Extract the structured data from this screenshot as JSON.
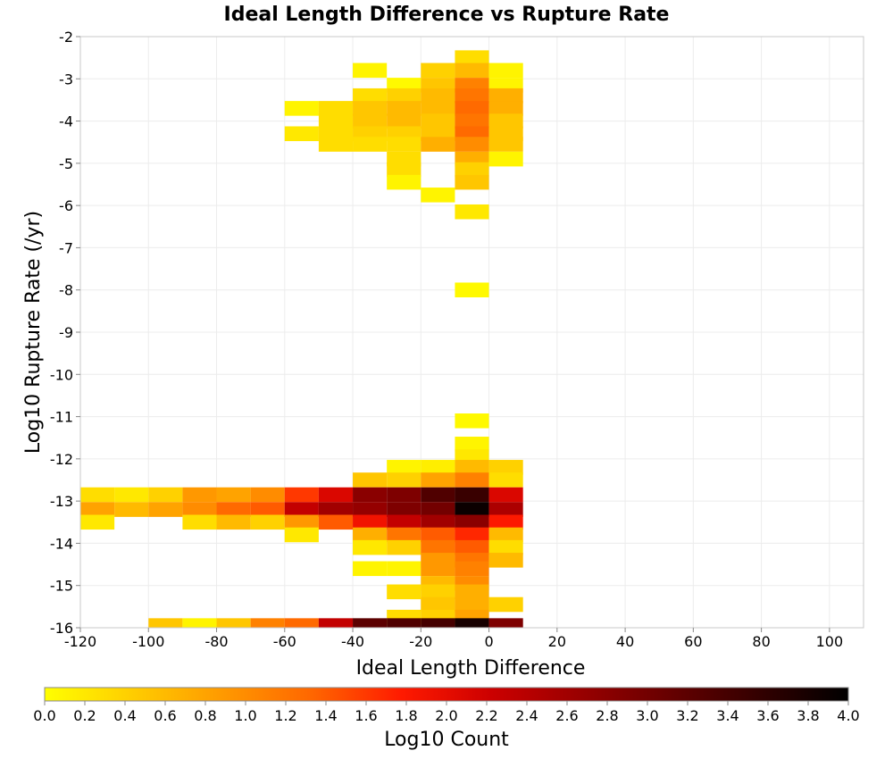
{
  "chart_data": {
    "type": "heatmap",
    "title": "Ideal Length Difference vs Rupture Rate",
    "xlabel": "Ideal Length Difference",
    "ylabel": "Log10 Rupture Rate (/yr)",
    "xlim": [
      -120,
      110
    ],
    "ylim": [
      -16,
      -2
    ],
    "x_ticks": [
      "-120",
      "-100",
      "-80",
      "-60",
      "-40",
      "-20",
      "0",
      "20",
      "40",
      "60",
      "80",
      "100"
    ],
    "y_ticks": [
      "-2",
      "-3",
      "-4",
      "-5",
      "-6",
      "-7",
      "-8",
      "-9",
      "-10",
      "-11",
      "-12",
      "-13",
      "-14",
      "-15",
      "-16"
    ],
    "bin_width_x": 10,
    "bin_height_y": 0.35,
    "colorbar": {
      "label": "Log10 Count",
      "range": [
        0,
        4
      ],
      "ticks": [
        "0.0",
        "0.2",
        "0.4",
        "0.6",
        "0.8",
        "1.0",
        "1.2",
        "1.4",
        "1.6",
        "1.8",
        "2.0",
        "2.2",
        "2.4",
        "2.6",
        "2.8",
        "3.0",
        "3.2",
        "3.4",
        "3.6",
        "3.8",
        "4.0"
      ],
      "colors": [
        "#ffff00",
        "#ffcc00",
        "#ff9900",
        "#ff6600",
        "#ff1a00",
        "#cc0000",
        "#990000",
        "#660000",
        "#330000",
        "#000000"
      ]
    },
    "grid": true,
    "cells": [
      {
        "x": -35,
        "y": -2.8,
        "value": 0.1
      },
      {
        "x": -15,
        "y": -2.8,
        "value": 0.4
      },
      {
        "x": -5,
        "y": -2.5,
        "value": 0.3
      },
      {
        "x": -5,
        "y": -2.8,
        "value": 0.6
      },
      {
        "x": 5,
        "y": -2.8,
        "value": 0.1
      },
      {
        "x": -25,
        "y": -3.15,
        "value": 0.05
      },
      {
        "x": -15,
        "y": -3.15,
        "value": 0.5
      },
      {
        "x": -5,
        "y": -3.15,
        "value": 1.1
      },
      {
        "x": 5,
        "y": -3.15,
        "value": 0.1
      },
      {
        "x": -35,
        "y": -3.4,
        "value": 0.3
      },
      {
        "x": -25,
        "y": -3.4,
        "value": 0.4
      },
      {
        "x": -15,
        "y": -3.4,
        "value": 0.6
      },
      {
        "x": -5,
        "y": -3.4,
        "value": 1.2
      },
      {
        "x": 5,
        "y": -3.4,
        "value": 0.7
      },
      {
        "x": -55,
        "y": -3.7,
        "value": 0.1
      },
      {
        "x": -45,
        "y": -3.7,
        "value": 0.3
      },
      {
        "x": -35,
        "y": -3.7,
        "value": 0.5
      },
      {
        "x": -25,
        "y": -3.7,
        "value": 0.6
      },
      {
        "x": -15,
        "y": -3.7,
        "value": 0.6
      },
      {
        "x": -5,
        "y": -3.7,
        "value": 1.3
      },
      {
        "x": 5,
        "y": -3.7,
        "value": 0.7
      },
      {
        "x": -45,
        "y": -4.0,
        "value": 0.3
      },
      {
        "x": -35,
        "y": -4.0,
        "value": 0.5
      },
      {
        "x": -25,
        "y": -4.0,
        "value": 0.6
      },
      {
        "x": -15,
        "y": -4.0,
        "value": 0.5
      },
      {
        "x": -5,
        "y": -4.0,
        "value": 1.2
      },
      {
        "x": 5,
        "y": -4.0,
        "value": 0.5
      },
      {
        "x": -55,
        "y": -4.3,
        "value": 0.2
      },
      {
        "x": -45,
        "y": -4.3,
        "value": 0.3
      },
      {
        "x": -35,
        "y": -4.3,
        "value": 0.4
      },
      {
        "x": -25,
        "y": -4.3,
        "value": 0.4
      },
      {
        "x": -15,
        "y": -4.3,
        "value": 0.5
      },
      {
        "x": -5,
        "y": -4.3,
        "value": 1.3
      },
      {
        "x": 5,
        "y": -4.3,
        "value": 0.5
      },
      {
        "x": -45,
        "y": -4.55,
        "value": 0.3
      },
      {
        "x": -35,
        "y": -4.55,
        "value": 0.3
      },
      {
        "x": -25,
        "y": -4.55,
        "value": 0.3
      },
      {
        "x": -15,
        "y": -4.55,
        "value": 0.7
      },
      {
        "x": -5,
        "y": -4.55,
        "value": 1.0
      },
      {
        "x": 5,
        "y": -4.55,
        "value": 0.5
      },
      {
        "x": -25,
        "y": -4.9,
        "value": 0.3
      },
      {
        "x": -5,
        "y": -4.9,
        "value": 0.7
      },
      {
        "x": 5,
        "y": -4.9,
        "value": 0.1
      },
      {
        "x": -25,
        "y": -5.15,
        "value": 0.3
      },
      {
        "x": -5,
        "y": -5.15,
        "value": 0.4
      },
      {
        "x": -25,
        "y": -5.45,
        "value": 0.1
      },
      {
        "x": -5,
        "y": -5.45,
        "value": 0.5
      },
      {
        "x": -15,
        "y": -5.75,
        "value": 0.1
      },
      {
        "x": -5,
        "y": -6.15,
        "value": 0.2
      },
      {
        "x": -5,
        "y": -8.0,
        "value": 0.05
      },
      {
        "x": -5,
        "y": -11.1,
        "value": 0.05
      },
      {
        "x": -5,
        "y": -11.65,
        "value": 0.1
      },
      {
        "x": -5,
        "y": -11.95,
        "value": 0.2
      },
      {
        "x": -25,
        "y": -12.2,
        "value": 0.1
      },
      {
        "x": -15,
        "y": -12.2,
        "value": 0.15
      },
      {
        "x": -5,
        "y": -12.2,
        "value": 0.6
      },
      {
        "x": 5,
        "y": -12.2,
        "value": 0.4
      },
      {
        "x": -35,
        "y": -12.5,
        "value": 0.5
      },
      {
        "x": -25,
        "y": -12.5,
        "value": 0.4
      },
      {
        "x": -15,
        "y": -12.5,
        "value": 0.8
      },
      {
        "x": -5,
        "y": -12.5,
        "value": 1.1
      },
      {
        "x": 5,
        "y": -12.5,
        "value": 0.3
      },
      {
        "x": -115,
        "y": -12.85,
        "value": 0.3
      },
      {
        "x": -105,
        "y": -12.85,
        "value": 0.2
      },
      {
        "x": -95,
        "y": -12.85,
        "value": 0.4
      },
      {
        "x": -85,
        "y": -12.85,
        "value": 0.9
      },
      {
        "x": -75,
        "y": -12.85,
        "value": 0.8
      },
      {
        "x": -65,
        "y": -12.85,
        "value": 1.0
      },
      {
        "x": -55,
        "y": -12.85,
        "value": 1.6
      },
      {
        "x": -45,
        "y": -12.85,
        "value": 2.1
      },
      {
        "x": -35,
        "y": -12.85,
        "value": 2.8
      },
      {
        "x": -25,
        "y": -12.85,
        "value": 2.9
      },
      {
        "x": -15,
        "y": -12.85,
        "value": 3.3
      },
      {
        "x": -5,
        "y": -12.85,
        "value": 3.5
      },
      {
        "x": 5,
        "y": -12.85,
        "value": 2.1
      },
      {
        "x": -115,
        "y": -13.2,
        "value": 0.8
      },
      {
        "x": -105,
        "y": -13.2,
        "value": 0.6
      },
      {
        "x": -95,
        "y": -13.2,
        "value": 0.8
      },
      {
        "x": -85,
        "y": -13.2,
        "value": 1.0
      },
      {
        "x": -75,
        "y": -13.2,
        "value": 1.3
      },
      {
        "x": -65,
        "y": -13.2,
        "value": 1.4
      },
      {
        "x": -55,
        "y": -13.2,
        "value": 2.3
      },
      {
        "x": -45,
        "y": -13.2,
        "value": 2.6
      },
      {
        "x": -35,
        "y": -13.2,
        "value": 2.7
      },
      {
        "x": -25,
        "y": -13.2,
        "value": 2.9
      },
      {
        "x": -15,
        "y": -13.2,
        "value": 3.0
      },
      {
        "x": -5,
        "y": -13.2,
        "value": 3.9
      },
      {
        "x": 5,
        "y": -13.2,
        "value": 2.5
      },
      {
        "x": -115,
        "y": -13.5,
        "value": 0.2
      },
      {
        "x": -85,
        "y": -13.5,
        "value": 0.3
      },
      {
        "x": -75,
        "y": -13.5,
        "value": 0.6
      },
      {
        "x": -65,
        "y": -13.5,
        "value": 0.4
      },
      {
        "x": -55,
        "y": -13.5,
        "value": 0.9
      },
      {
        "x": -45,
        "y": -13.5,
        "value": 1.4
      },
      {
        "x": -35,
        "y": -13.5,
        "value": 1.9
      },
      {
        "x": -25,
        "y": -13.5,
        "value": 2.3
      },
      {
        "x": -15,
        "y": -13.5,
        "value": 2.6
      },
      {
        "x": -5,
        "y": -13.5,
        "value": 2.8
      },
      {
        "x": 5,
        "y": -13.5,
        "value": 1.8
      },
      {
        "x": -55,
        "y": -13.8,
        "value": 0.2
      },
      {
        "x": -35,
        "y": -13.8,
        "value": 0.7
      },
      {
        "x": -25,
        "y": -13.8,
        "value": 1.2
      },
      {
        "x": -15,
        "y": -13.8,
        "value": 1.4
      },
      {
        "x": -5,
        "y": -13.8,
        "value": 1.7
      },
      {
        "x": 5,
        "y": -13.8,
        "value": 0.6
      },
      {
        "x": -35,
        "y": -14.1,
        "value": 0.2
      },
      {
        "x": -25,
        "y": -14.1,
        "value": 0.4
      },
      {
        "x": -15,
        "y": -14.1,
        "value": 1.2
      },
      {
        "x": -5,
        "y": -14.1,
        "value": 1.4
      },
      {
        "x": 5,
        "y": -14.1,
        "value": 0.3
      },
      {
        "x": -15,
        "y": -14.4,
        "value": 0.9
      },
      {
        "x": -5,
        "y": -14.4,
        "value": 1.2
      },
      {
        "x": 5,
        "y": -14.4,
        "value": 0.6
      },
      {
        "x": -35,
        "y": -14.6,
        "value": 0.1
      },
      {
        "x": -25,
        "y": -14.6,
        "value": 0.1
      },
      {
        "x": -15,
        "y": -14.6,
        "value": 0.9
      },
      {
        "x": -5,
        "y": -14.6,
        "value": 1.1
      },
      {
        "x": -15,
        "y": -14.95,
        "value": 0.6
      },
      {
        "x": -5,
        "y": -14.95,
        "value": 1.0
      },
      {
        "x": -25,
        "y": -15.15,
        "value": 0.3
      },
      {
        "x": -15,
        "y": -15.15,
        "value": 0.4
      },
      {
        "x": -5,
        "y": -15.15,
        "value": 0.7
      },
      {
        "x": -15,
        "y": -15.45,
        "value": 0.5
      },
      {
        "x": -5,
        "y": -15.45,
        "value": 0.7
      },
      {
        "x": 5,
        "y": -15.45,
        "value": 0.4
      },
      {
        "x": -25,
        "y": -15.75,
        "value": 0.3
      },
      {
        "x": -15,
        "y": -15.75,
        "value": 0.4
      },
      {
        "x": -5,
        "y": -15.75,
        "value": 0.8
      },
      {
        "x": -95,
        "y": -15.95,
        "value": 0.5
      },
      {
        "x": -85,
        "y": -15.95,
        "value": 0.1
      },
      {
        "x": -75,
        "y": -15.95,
        "value": 0.5
      },
      {
        "x": -65,
        "y": -15.95,
        "value": 1.1
      },
      {
        "x": -55,
        "y": -15.95,
        "value": 1.3
      },
      {
        "x": -45,
        "y": -15.95,
        "value": 2.3
      },
      {
        "x": -35,
        "y": -15.95,
        "value": 3.2
      },
      {
        "x": -25,
        "y": -15.95,
        "value": 3.3
      },
      {
        "x": -15,
        "y": -15.95,
        "value": 3.4
      },
      {
        "x": -5,
        "y": -15.95,
        "value": 3.8
      },
      {
        "x": 5,
        "y": -15.95,
        "value": 2.9
      }
    ]
  }
}
